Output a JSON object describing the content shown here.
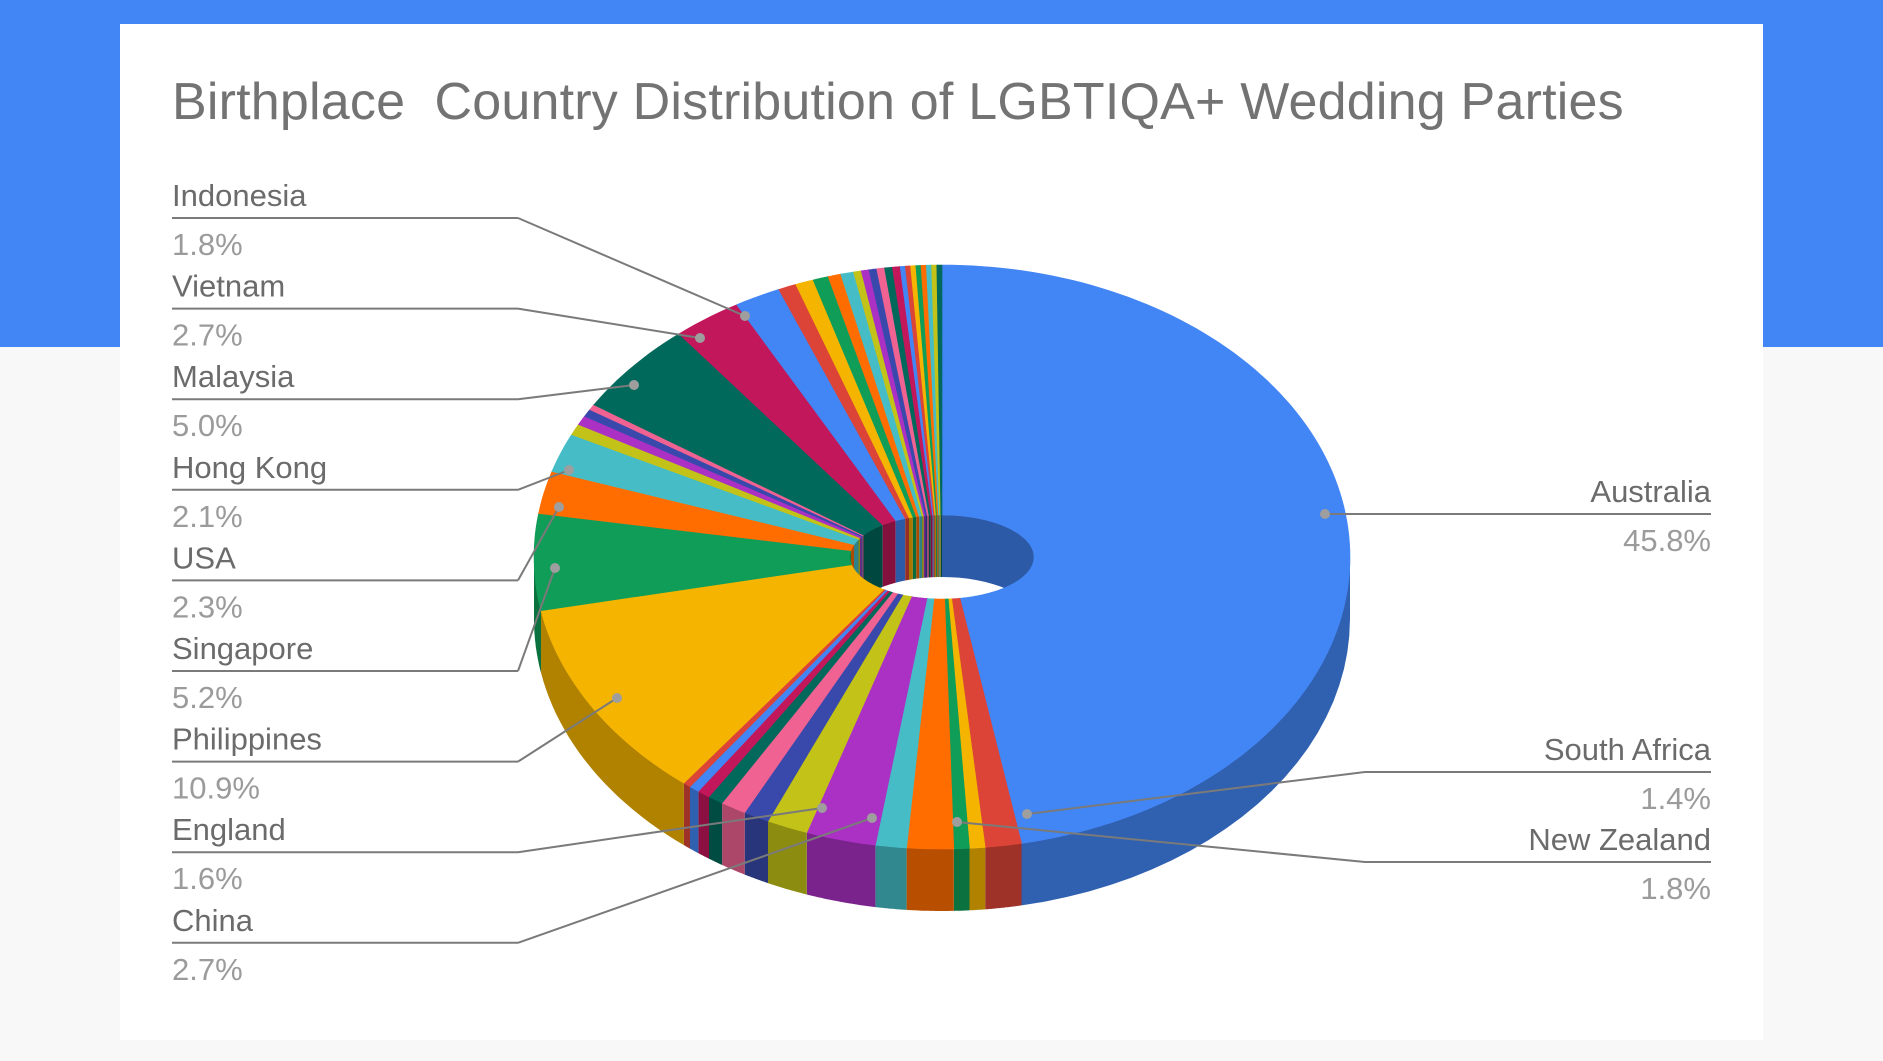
{
  "chart_data": {
    "type": "pie",
    "style": "3d-donut",
    "title": "Birthplace  Country Distribution of LGBTIQA+ Wedding Parties",
    "labeled": [
      {
        "name": "Australia",
        "pct_label": "45.8%",
        "value": 45.8,
        "color": "#4285f4",
        "side": "right"
      },
      {
        "name": "South Africa",
        "pct_label": "1.4%",
        "value": 1.4,
        "color": "#db4437",
        "side": "right"
      },
      {
        "name": "New Zealand",
        "pct_label": "1.8%",
        "value": 1.8,
        "color": "#f4b400",
        "side": "right"
      },
      {
        "name": "China",
        "pct_label": "2.7%",
        "value": 2.7,
        "color": "#ab30c4",
        "side": "left"
      },
      {
        "name": "England",
        "pct_label": "1.6%",
        "value": 1.6,
        "color": "#c2c218",
        "side": "left"
      },
      {
        "name": "Philippines",
        "pct_label": "10.9%",
        "value": 10.9,
        "color": "#f4b400",
        "side": "left"
      },
      {
        "name": "Singapore",
        "pct_label": "5.2%",
        "value": 5.2,
        "color": "#0f9d58",
        "side": "left"
      },
      {
        "name": "USA",
        "pct_label": "2.3%",
        "value": 2.3,
        "color": "#ff6d00",
        "side": "left"
      },
      {
        "name": "Hong Kong",
        "pct_label": "2.1%",
        "value": 2.1,
        "color": "#46bdc6",
        "side": "left"
      },
      {
        "name": "Malaysia",
        "pct_label": "5.0%",
        "value": 5.0,
        "color": "#00695c",
        "side": "left"
      },
      {
        "name": "Vietnam",
        "pct_label": "2.7%",
        "value": 2.7,
        "color": "#c2185b",
        "side": "left"
      },
      {
        "name": "Indonesia",
        "pct_label": "1.8%",
        "value": 1.8,
        "color": "#4285f4",
        "side": "left"
      }
    ],
    "slices": [
      {
        "value": 45.8,
        "color": "#4285f4"
      },
      {
        "value": 1.4,
        "color": "#db4437"
      },
      {
        "value": 0.6,
        "color": "#f4b400"
      },
      {
        "value": 0.6,
        "color": "#0f9d58"
      },
      {
        "value": 1.8,
        "color": "#ff6d00"
      },
      {
        "value": 1.2,
        "color": "#46bdc6"
      },
      {
        "value": 2.7,
        "color": "#ab30c4"
      },
      {
        "value": 1.6,
        "color": "#c2c218"
      },
      {
        "value": 1.0,
        "color": "#3949ab"
      },
      {
        "value": 1.0,
        "color": "#f06292"
      },
      {
        "value": 0.6,
        "color": "#00695c"
      },
      {
        "value": 0.5,
        "color": "#c2185b"
      },
      {
        "value": 0.4,
        "color": "#4285f4"
      },
      {
        "value": 0.3,
        "color": "#db4437"
      },
      {
        "value": 10.9,
        "color": "#f4b400"
      },
      {
        "value": 5.2,
        "color": "#0f9d58"
      },
      {
        "value": 2.3,
        "color": "#ff6d00"
      },
      {
        "value": 2.1,
        "color": "#46bdc6"
      },
      {
        "value": 0.6,
        "color": "#c2c218"
      },
      {
        "value": 0.5,
        "color": "#ab30c4"
      },
      {
        "value": 0.4,
        "color": "#3949ab"
      },
      {
        "value": 0.3,
        "color": "#f06292"
      },
      {
        "value": 5.0,
        "color": "#00695c"
      },
      {
        "value": 2.7,
        "color": "#c2185b"
      },
      {
        "value": 1.8,
        "color": "#4285f4"
      },
      {
        "value": 0.7,
        "color": "#db4437"
      },
      {
        "value": 0.7,
        "color": "#f4b400"
      },
      {
        "value": 0.6,
        "color": "#0f9d58"
      },
      {
        "value": 0.5,
        "color": "#ff6d00"
      },
      {
        "value": 0.5,
        "color": "#46bdc6"
      },
      {
        "value": 0.3,
        "color": "#c2c218"
      },
      {
        "value": 0.3,
        "color": "#ab30c4"
      },
      {
        "value": 0.3,
        "color": "#3949ab"
      },
      {
        "value": 0.3,
        "color": "#f06292"
      },
      {
        "value": 0.3,
        "color": "#00695c"
      },
      {
        "value": 0.3,
        "color": "#c2185b"
      },
      {
        "value": 0.2,
        "color": "#4285f4"
      },
      {
        "value": 0.2,
        "color": "#db4437"
      },
      {
        "value": 0.2,
        "color": "#f4b400"
      },
      {
        "value": 0.2,
        "color": "#0f9d58"
      },
      {
        "value": 0.2,
        "color": "#ff6d00"
      },
      {
        "value": 0.2,
        "color": "#46bdc6"
      },
      {
        "value": 0.2,
        "color": "#c2c218"
      },
      {
        "value": 0.2,
        "color": "#00695c"
      }
    ],
    "legend": "none"
  }
}
